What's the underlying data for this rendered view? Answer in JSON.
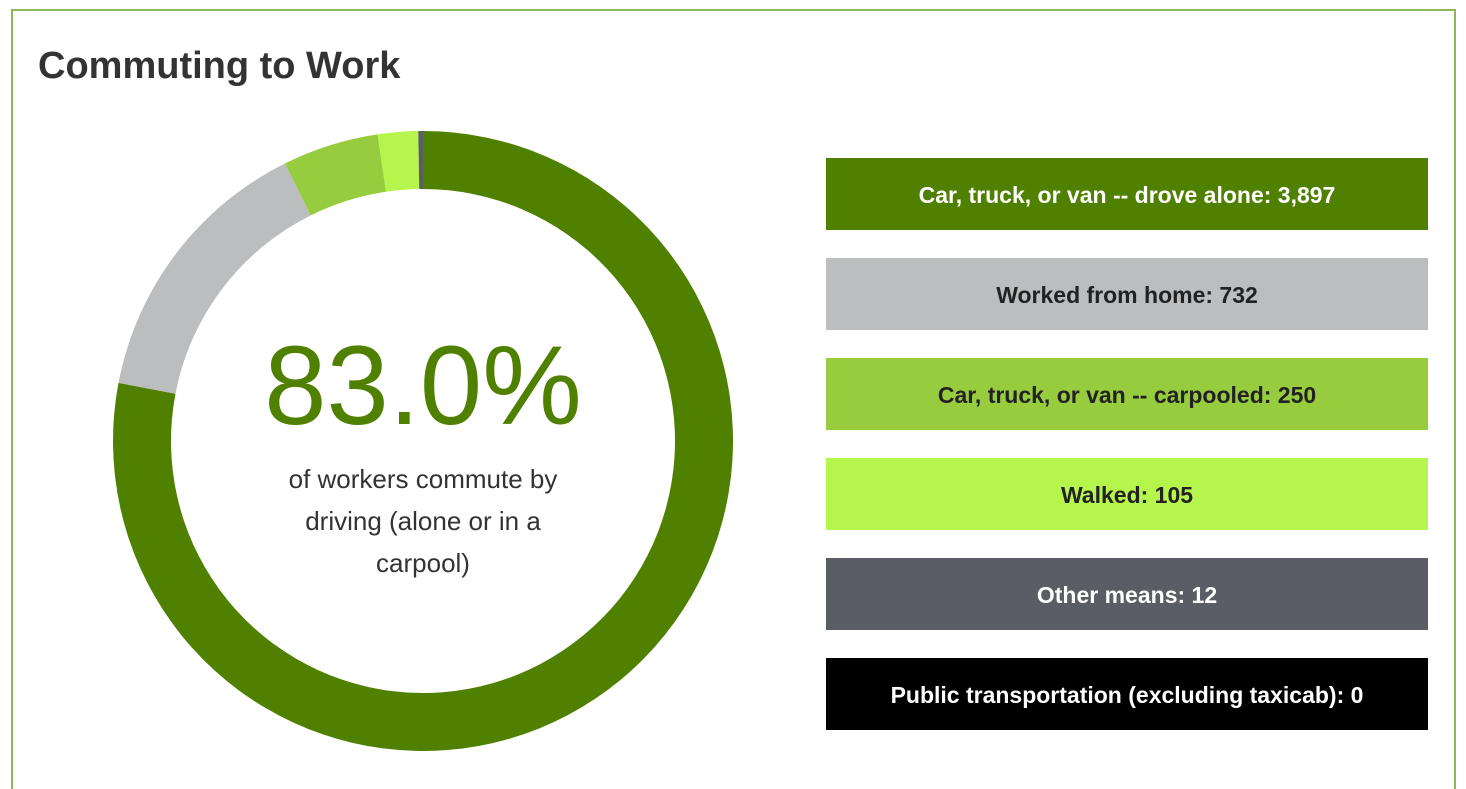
{
  "chart_data": {
    "type": "pie",
    "donut": true,
    "title": "Commuting to Work",
    "annotation": "83.0%",
    "annotation_text": "of workers commute by driving (alone or in a carpool)",
    "values": [
      3897,
      732,
      250,
      105,
      12,
      0
    ],
    "value_labels": [
      "Car, truck, or van -- drove alone: 3,897",
      "Worked from home: 732",
      "Car, truck, or van -- carpooled: 250",
      "Walked: 105",
      "Other means: 12",
      "Public transportation (excluding taxicab): 0"
    ],
    "colors": [
      "#4f8000",
      "#bbbdbf",
      "#97cc3f",
      "#b5f54c",
      "#5a5d63",
      "#000000"
    ],
    "label_colors": [
      "#ffffff",
      "#222222",
      "#222222",
      "#222222",
      "#ffffff",
      "#ffffff"
    ]
  }
}
